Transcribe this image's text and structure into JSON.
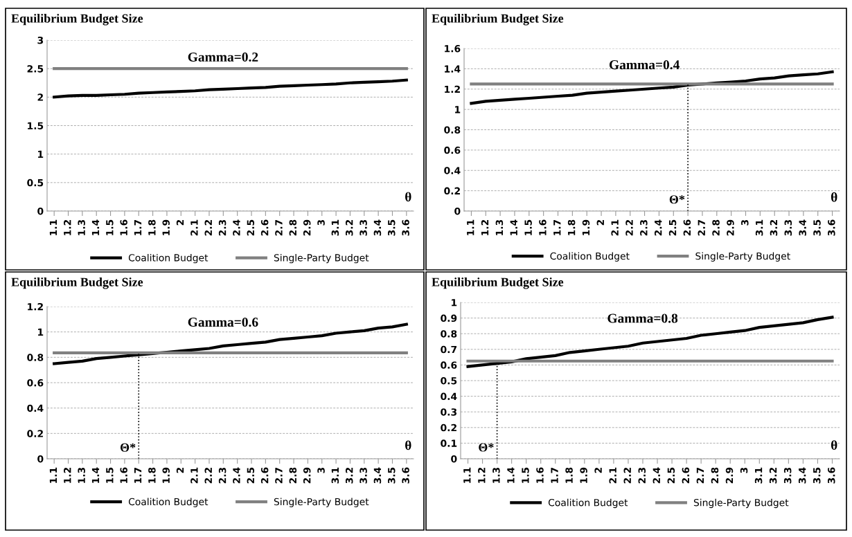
{
  "chart_data": [
    {
      "type": "line",
      "title": "Equilibrium Budget Size",
      "categories": [
        "1.1",
        "1.2",
        "1.3",
        "1.4",
        "1.5",
        "1.6",
        "1.7",
        "1.8",
        "1.9",
        "2",
        "2.1",
        "2.2",
        "2.3",
        "2.4",
        "2.5",
        "2.6",
        "2.7",
        "2.8",
        "2.9",
        "3",
        "3.1",
        "3.2",
        "3.3",
        "3.4",
        "3.5",
        "3.6"
      ],
      "series": [
        {
          "name": "Coalition Budget",
          "color": "#000000",
          "values": [
            2.0,
            2.02,
            2.03,
            2.03,
            2.04,
            2.05,
            2.07,
            2.08,
            2.09,
            2.1,
            2.11,
            2.13,
            2.14,
            2.15,
            2.16,
            2.17,
            2.19,
            2.2,
            2.21,
            2.22,
            2.23,
            2.25,
            2.26,
            2.27,
            2.28,
            2.3
          ]
        },
        {
          "name": "Single-Party Budget",
          "color": "#808080",
          "values": [
            2.5,
            2.5,
            2.5,
            2.5,
            2.5,
            2.5,
            2.5,
            2.5,
            2.5,
            2.5,
            2.5,
            2.5,
            2.5,
            2.5,
            2.5,
            2.5,
            2.5,
            2.5,
            2.5,
            2.5,
            2.5,
            2.5,
            2.5,
            2.5,
            2.5,
            2.5
          ]
        }
      ],
      "ylim": [
        0,
        3
      ],
      "yticks": [
        0,
        0.5,
        1,
        1.5,
        2,
        2.5,
        3
      ],
      "grid": "y",
      "legend": "bottom",
      "marker": "none",
      "line_style": "solid",
      "annotations": [
        "Gamma=0.2",
        "θ"
      ]
    },
    {
      "type": "line",
      "title": "Equilibrium Budget Size",
      "categories": [
        "1.1",
        "1.2",
        "1.3",
        "1.4",
        "1.5",
        "1.6",
        "1.7",
        "1.8",
        "1.9",
        "2",
        "2.1",
        "2.2",
        "2.3",
        "2.4",
        "2.5",
        "2.6",
        "2.7",
        "2.8",
        "2.9",
        "3",
        "3.1",
        "3.2",
        "3.3",
        "3.4",
        "3.5",
        "3.6"
      ],
      "series": [
        {
          "name": "Coalition Budget",
          "color": "#000000",
          "values": [
            1.06,
            1.08,
            1.09,
            1.1,
            1.11,
            1.12,
            1.13,
            1.14,
            1.16,
            1.17,
            1.18,
            1.19,
            1.2,
            1.21,
            1.22,
            1.24,
            1.25,
            1.26,
            1.27,
            1.28,
            1.3,
            1.31,
            1.33,
            1.34,
            1.35,
            1.37
          ]
        },
        {
          "name": "Single-Party Budget",
          "color": "#808080",
          "values": [
            1.25,
            1.25,
            1.25,
            1.25,
            1.25,
            1.25,
            1.25,
            1.25,
            1.25,
            1.25,
            1.25,
            1.25,
            1.25,
            1.25,
            1.25,
            1.25,
            1.25,
            1.25,
            1.25,
            1.25,
            1.25,
            1.25,
            1.25,
            1.25,
            1.25,
            1.25
          ]
        }
      ],
      "ylim": [
        0,
        1.6
      ],
      "yticks": [
        0,
        0.2,
        0.4,
        0.6,
        0.8,
        1,
        1.2,
        1.4,
        1.6
      ],
      "grid": "y",
      "legend": "bottom",
      "marker": "none",
      "line_style": "solid",
      "ref_lines": [
        {
          "axis": "x",
          "value": "2.6",
          "label": "Θ*",
          "color": "#000000",
          "line_style": "dotted"
        }
      ],
      "annotations": [
        "Gamma=0.4",
        "θ"
      ]
    },
    {
      "type": "line",
      "title": "Equilibrium Budget Size",
      "categories": [
        "1.1",
        "1.2",
        "1.3",
        "1.4",
        "1.5",
        "1.6",
        "1.7",
        "1.8",
        "1.9",
        "2",
        "2.1",
        "2.2",
        "2.3",
        "2.4",
        "2.5",
        "2.6",
        "2.7",
        "2.8",
        "2.9",
        "3",
        "3.1",
        "3.2",
        "3.3",
        "3.4",
        "3.5",
        "3.6"
      ],
      "series": [
        {
          "name": "Coalition Budget",
          "color": "#000000",
          "values": [
            0.75,
            0.76,
            0.77,
            0.79,
            0.8,
            0.81,
            0.82,
            0.83,
            0.84,
            0.85,
            0.86,
            0.87,
            0.89,
            0.9,
            0.91,
            0.92,
            0.94,
            0.95,
            0.96,
            0.97,
            0.99,
            1.0,
            1.01,
            1.03,
            1.04,
            1.06
          ]
        },
        {
          "name": "Single-Party Budget",
          "color": "#808080",
          "values": [
            0.835,
            0.835,
            0.835,
            0.835,
            0.835,
            0.835,
            0.835,
            0.835,
            0.835,
            0.835,
            0.835,
            0.835,
            0.835,
            0.835,
            0.835,
            0.835,
            0.835,
            0.835,
            0.835,
            0.835,
            0.835,
            0.835,
            0.835,
            0.835,
            0.835,
            0.835
          ]
        }
      ],
      "ylim": [
        0,
        1.2
      ],
      "yticks": [
        0,
        0.2,
        0.4,
        0.6,
        0.8,
        1,
        1.2
      ],
      "grid": "y",
      "legend": "bottom",
      "marker": "none",
      "line_style": "solid",
      "ref_lines": [
        {
          "axis": "x",
          "value": "1.7",
          "label": "Θ*",
          "color": "#000000",
          "line_style": "dotted"
        }
      ],
      "annotations": [
        "Gamma=0.6",
        "θ"
      ]
    },
    {
      "type": "line",
      "title": "Equilibrium Budget Size",
      "categories": [
        "1.1",
        "1.2",
        "1.3",
        "1.4",
        "1.5",
        "1.6",
        "1.7",
        "1.8",
        "1.9",
        "2",
        "2.1",
        "2.2",
        "2.3",
        "2.4",
        "2.5",
        "2.6",
        "2.7",
        "2.8",
        "2.9",
        "3",
        "3.1",
        "3.2",
        "3.3",
        "3.4",
        "3.5",
        "3.6"
      ],
      "series": [
        {
          "name": "Coalition Budget",
          "color": "#000000",
          "values": [
            0.59,
            0.6,
            0.61,
            0.62,
            0.64,
            0.65,
            0.66,
            0.68,
            0.69,
            0.7,
            0.71,
            0.72,
            0.74,
            0.75,
            0.76,
            0.77,
            0.79,
            0.8,
            0.81,
            0.82,
            0.84,
            0.85,
            0.86,
            0.87,
            0.89,
            0.905
          ]
        },
        {
          "name": "Single-Party Budget",
          "color": "#808080",
          "values": [
            0.625,
            0.625,
            0.625,
            0.625,
            0.625,
            0.625,
            0.625,
            0.625,
            0.625,
            0.625,
            0.625,
            0.625,
            0.625,
            0.625,
            0.625,
            0.625,
            0.625,
            0.625,
            0.625,
            0.625,
            0.625,
            0.625,
            0.625,
            0.625,
            0.625,
            0.625
          ]
        }
      ],
      "ylim": [
        0,
        1
      ],
      "yticks": [
        0,
        0.1,
        0.2,
        0.3,
        0.4,
        0.5,
        0.6,
        0.7,
        0.8,
        0.9,
        1
      ],
      "grid": "y",
      "legend": "bottom",
      "marker": "none",
      "line_style": "solid",
      "ref_lines": [
        {
          "axis": "x",
          "value": "1.3",
          "label": "Θ*",
          "color": "#000000",
          "line_style": "dotted"
        }
      ],
      "annotations": [
        "Gamma=0.8",
        "θ"
      ]
    }
  ]
}
